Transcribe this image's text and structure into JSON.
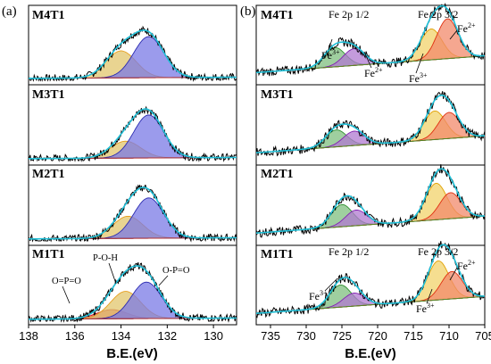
{
  "chart_data": [
    {
      "type": "area",
      "panel_label": "(a)",
      "xlabel": "B.E.(eV)",
      "xlim": [
        138,
        129
      ],
      "x_ticks": [
        "138",
        "136",
        "134",
        "132",
        "130"
      ],
      "subplots": [
        {
          "title": "M4T1",
          "components": [
            {
              "center": 134.0,
              "height": 0.42,
              "fill": "#e2c56c",
              "line": "#e8a020"
            },
            {
              "center": 132.8,
              "height": 0.64,
              "fill": "#7a7ae6",
              "line": "#2a2ab0"
            }
          ],
          "annotations": []
        },
        {
          "title": "M3T1",
          "components": [
            {
              "center": 133.8,
              "height": 0.26,
              "fill": "#e2c56c",
              "line": "#e8a020"
            },
            {
              "center": 132.8,
              "height": 0.66,
              "fill": "#7a7ae6",
              "line": "#2a2ab0"
            }
          ],
          "annotations": []
        },
        {
          "title": "M2T1",
          "components": [
            {
              "center": 133.7,
              "height": 0.34,
              "fill": "#e2c56c",
              "line": "#e8a020"
            },
            {
              "center": 132.8,
              "height": 0.62,
              "fill": "#7a7ae6",
              "line": "#2a2ab0"
            }
          ],
          "annotations": []
        },
        {
          "title": "M1T1",
          "components": [
            {
              "center": 134.4,
              "height": 0.14,
              "fill": "#d9505a",
              "line": "#c01020"
            },
            {
              "center": 133.8,
              "height": 0.42,
              "fill": "#e2c56c",
              "line": "#e8a020"
            },
            {
              "center": 132.9,
              "height": 0.56,
              "fill": "#7a7ae6",
              "line": "#2a2ab0"
            }
          ],
          "annotations": [
            "O=P=O",
            "P-O-H",
            "O-P=O"
          ]
        }
      ]
    },
    {
      "type": "area",
      "panel_label": "(b)",
      "xlabel": "B.E.(eV)",
      "xlim": [
        737,
        705
      ],
      "x_ticks": [
        "735",
        "730",
        "725",
        "720",
        "715",
        "710",
        "705"
      ],
      "subplots": [
        {
          "title": "M4T1",
          "components": [
            {
              "center": 726.0,
              "height": 0.3,
              "fill": "#7fbf7f",
              "line": "#2f8f2f"
            },
            {
              "center": 723.3,
              "height": 0.26,
              "fill": "#b07ad0",
              "line": "#8020b0"
            },
            {
              "center": 712.5,
              "height": 0.48,
              "fill": "#f2d36b",
              "line": "#e0a000"
            },
            {
              "center": 710.2,
              "height": 0.62,
              "fill": "#f28a6b",
              "line": "#e03010"
            }
          ],
          "annotations": [
            "Fe 2p 1/2",
            "Fe 2p 3/2",
            "Fe",
            "3+",
            "Fe",
            "2+",
            "Fe",
            "3+",
            "Fe",
            "2+"
          ]
        },
        {
          "title": "M3T1",
          "components": [
            {
              "center": 725.8,
              "height": 0.26,
              "fill": "#7fbf7f",
              "line": "#2f8f2f"
            },
            {
              "center": 723.3,
              "height": 0.22,
              "fill": "#b07ad0",
              "line": "#8020b0"
            },
            {
              "center": 712.0,
              "height": 0.44,
              "fill": "#f2d36b",
              "line": "#e0a000"
            },
            {
              "center": 710.0,
              "height": 0.4,
              "fill": "#f28a6b",
              "line": "#e03010"
            }
          ],
          "annotations": []
        },
        {
          "title": "M2T1",
          "components": [
            {
              "center": 725.0,
              "height": 0.34,
              "fill": "#7fbf7f",
              "line": "#2f8f2f"
            },
            {
              "center": 723.0,
              "height": 0.24,
              "fill": "#b07ad0",
              "line": "#8020b0"
            },
            {
              "center": 711.8,
              "height": 0.56,
              "fill": "#f2d36b",
              "line": "#e0a000"
            },
            {
              "center": 709.8,
              "height": 0.4,
              "fill": "#f28a6b",
              "line": "#e03010"
            }
          ],
          "annotations": []
        },
        {
          "title": "M1T1",
          "components": [
            {
              "center": 725.2,
              "height": 0.34,
              "fill": "#7fbf7f",
              "line": "#2f8f2f"
            },
            {
              "center": 723.3,
              "height": 0.2,
              "fill": "#b07ad0",
              "line": "#8020b0"
            },
            {
              "center": 711.5,
              "height": 0.6,
              "fill": "#f2d36b",
              "line": "#e0a000"
            },
            {
              "center": 709.6,
              "height": 0.42,
              "fill": "#f28a6b",
              "line": "#e03010"
            }
          ],
          "annotations": [
            "Fe 2p 1/2",
            "Fe 2p 3/2",
            "Fe",
            "3+",
            "Fe",
            "3+",
            "Fe",
            "2+"
          ]
        }
      ]
    }
  ]
}
